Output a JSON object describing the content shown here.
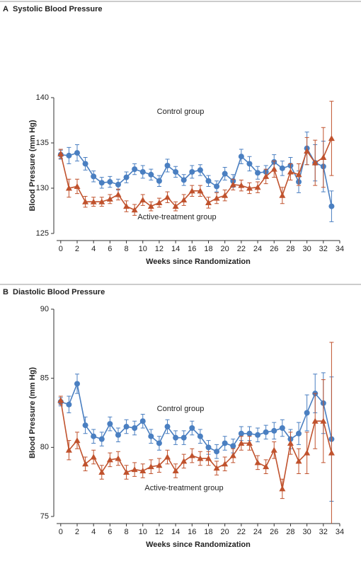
{
  "chart_data": [
    {
      "type": "line",
      "panel": "A",
      "title": "Systolic Blood Pressure",
      "x_label": "Weeks since Randomization",
      "y_label": "Blood Pressure (mm Hg)",
      "annotations": [
        "Control group",
        "Active-treatment group"
      ],
      "x": [
        0,
        1,
        2,
        3,
        4,
        5,
        6,
        7,
        8,
        9,
        10,
        11,
        12,
        13,
        14,
        15,
        16,
        17,
        18,
        19,
        20,
        21,
        22,
        23,
        24,
        25,
        26,
        27,
        28,
        29,
        30,
        31,
        32,
        33
      ],
      "xlim": [
        -0.5,
        34
      ],
      "xticks": [
        0,
        2,
        4,
        6,
        8,
        10,
        12,
        14,
        16,
        18,
        20,
        22,
        24,
        26,
        28,
        30,
        32,
        34
      ],
      "ylim": [
        125,
        140
      ],
      "yticks": [
        125,
        130,
        135,
        140
      ],
      "series": [
        {
          "name": "Control group",
          "color": "#4a7fc1",
          "marker": "circle",
          "values": [
            133.7,
            133.6,
            133.9,
            132.7,
            131.3,
            130.6,
            130.7,
            130.4,
            131.2,
            132.1,
            131.8,
            131.5,
            130.8,
            132.5,
            131.8,
            130.9,
            131.8,
            132.0,
            130.8,
            130.2,
            131.6,
            130.8,
            133.5,
            132.7,
            131.7,
            131.8,
            132.9,
            132.2,
            132.5,
            130.7,
            134.4,
            132.8,
            132.4,
            128.0
          ],
          "errors": [
            0.5,
            0.9,
            0.9,
            0.7,
            0.6,
            0.6,
            0.6,
            0.6,
            0.6,
            0.6,
            0.7,
            0.6,
            0.6,
            0.7,
            0.6,
            0.6,
            0.7,
            0.6,
            0.6,
            0.6,
            0.7,
            0.7,
            0.8,
            0.8,
            0.7,
            0.7,
            0.8,
            0.8,
            0.9,
            1.2,
            1.8,
            2.0,
            2.8,
            1.7
          ]
        },
        {
          "name": "Active-treatment group",
          "color": "#c0522d",
          "marker": "triangle",
          "values": [
            133.8,
            130.0,
            130.2,
            128.5,
            128.5,
            128.5,
            128.8,
            129.3,
            128.0,
            127.6,
            128.7,
            128.0,
            128.4,
            129.0,
            128.0,
            128.7,
            129.7,
            129.7,
            128.4,
            128.9,
            129.2,
            130.4,
            130.3,
            130.0,
            130.1,
            131.3,
            132.1,
            129.2,
            131.8,
            131.5,
            134.1,
            132.8,
            133.4,
            135.5
          ],
          "errors": [
            0.5,
            1.0,
            0.8,
            0.6,
            0.5,
            0.5,
            0.5,
            0.6,
            0.6,
            0.6,
            0.6,
            0.5,
            0.5,
            0.6,
            0.5,
            0.6,
            0.6,
            0.6,
            0.6,
            0.6,
            0.6,
            0.6,
            0.6,
            0.6,
            0.6,
            0.8,
            0.9,
            0.9,
            0.9,
            1.2,
            1.5,
            2.5,
            3.3,
            4.1
          ]
        }
      ]
    },
    {
      "type": "line",
      "panel": "B",
      "title": "Diastolic Blood Pressure",
      "x_label": "Weeks since Randomization",
      "y_label": "Blood Pressure (mm Hg)",
      "annotations": [
        "Control group",
        "Active-treatment group"
      ],
      "x": [
        0,
        1,
        2,
        3,
        4,
        5,
        6,
        7,
        8,
        9,
        10,
        11,
        12,
        13,
        14,
        15,
        16,
        17,
        18,
        19,
        20,
        21,
        22,
        23,
        24,
        25,
        26,
        27,
        28,
        29,
        30,
        31,
        32,
        33
      ],
      "xlim": [
        -0.5,
        34
      ],
      "xticks": [
        0,
        2,
        4,
        6,
        8,
        10,
        12,
        14,
        16,
        18,
        20,
        22,
        24,
        26,
        28,
        30,
        32,
        34
      ],
      "ylim": [
        75,
        90
      ],
      "yticks": [
        75,
        80,
        85,
        90
      ],
      "series": [
        {
          "name": "Control group",
          "color": "#4a7fc1",
          "marker": "circle",
          "values": [
            83.3,
            83.1,
            84.6,
            81.6,
            80.8,
            80.6,
            81.7,
            80.9,
            81.5,
            81.4,
            81.9,
            80.8,
            80.3,
            81.5,
            80.7,
            80.7,
            81.4,
            80.8,
            80.0,
            79.7,
            80.3,
            80.1,
            81.0,
            81.0,
            80.9,
            81.1,
            81.2,
            81.4,
            80.6,
            81.0,
            82.5,
            83.9,
            83.2,
            80.6
          ],
          "errors": [
            0.3,
            0.6,
            0.7,
            0.6,
            0.5,
            0.5,
            0.5,
            0.5,
            0.5,
            0.5,
            0.5,
            0.5,
            0.5,
            0.5,
            0.5,
            0.5,
            0.5,
            0.5,
            0.5,
            0.5,
            0.5,
            0.5,
            0.5,
            0.5,
            0.5,
            0.5,
            0.6,
            0.6,
            0.7,
            0.8,
            1.3,
            1.4,
            2.2,
            4.5
          ]
        },
        {
          "name": "Active-treatment group",
          "color": "#c0522d",
          "marker": "triangle",
          "values": [
            83.4,
            79.8,
            80.5,
            78.8,
            79.3,
            78.2,
            79.1,
            79.2,
            78.2,
            78.4,
            78.3,
            78.6,
            78.7,
            79.3,
            78.3,
            79.0,
            79.4,
            79.2,
            79.2,
            78.5,
            78.8,
            79.4,
            80.3,
            80.3,
            78.9,
            78.6,
            79.8,
            77.0,
            80.3,
            79.0,
            79.6,
            81.9,
            81.9,
            79.6
          ],
          "errors": [
            0.3,
            0.7,
            0.6,
            0.5,
            0.5,
            0.5,
            0.5,
            0.5,
            0.5,
            0.5,
            0.5,
            0.5,
            0.5,
            0.5,
            0.5,
            0.5,
            0.5,
            0.5,
            0.5,
            0.5,
            0.5,
            0.5,
            0.5,
            0.5,
            0.5,
            0.5,
            0.6,
            0.7,
            0.8,
            0.9,
            1.5,
            2.0,
            3.0,
            8.0
          ]
        }
      ]
    }
  ]
}
